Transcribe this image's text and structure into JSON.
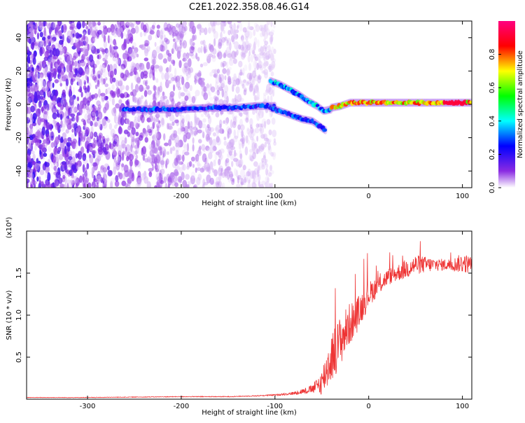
{
  "figure": {
    "title": "C2E1.2022.358.08.46.G14"
  },
  "chart_data": [
    {
      "type": "heatmap",
      "title": "C2E1.2022.358.08.46.G14",
      "xlabel": "Height of straight line (km)",
      "ylabel": "Frequency (Hz)",
      "xlim": [
        -365,
        110
      ],
      "ylim": [
        -50,
        50
      ],
      "x_ticks": [
        -300,
        -200,
        -100,
        0,
        100
      ],
      "y_ticks": [
        -40,
        -20,
        0,
        20,
        40
      ],
      "colorbar": {
        "label": "Normalized spectral amplitude",
        "range": [
          0.0,
          1.0
        ],
        "ticks": [
          "0.0",
          "0.2",
          "0.4",
          "0.6",
          "0.8"
        ],
        "colormap": [
          "#ffffff",
          "#8a2be2",
          "#0000ff",
          "#00ffff",
          "#00ff00",
          "#ffff00",
          "#ff0000",
          "#ff0080"
        ]
      },
      "ridges": [
        {
          "x": [
            -262,
            -230,
            -200,
            -170,
            -140,
            -120,
            -105,
            -100
          ],
          "y": [
            -3,
            -3,
            -3,
            -2,
            -2,
            -1,
            -1,
            -1
          ],
          "amplitude": 0.35
        },
        {
          "x": [
            -105,
            -90,
            -80,
            -70,
            -60,
            -50,
            -45
          ],
          "y": [
            -2,
            -5,
            -7,
            -9,
            -10,
            -14,
            -16
          ],
          "amplitude": 0.35
        },
        {
          "x": [
            -105,
            -95,
            -85,
            -75,
            -65,
            -55,
            -48,
            -40
          ],
          "y": [
            14,
            12,
            9,
            6,
            2,
            -1,
            -4,
            -3
          ],
          "amplitude": 0.45
        },
        {
          "x": [
            -40,
            -30,
            -20,
            -10,
            0,
            20,
            40,
            60,
            80,
            100,
            110
          ],
          "y": [
            -2,
            -1,
            1,
            1,
            1,
            1,
            1,
            1,
            1,
            1,
            1
          ],
          "amplitude": 0.85
        }
      ],
      "noise_region": {
        "x": [
          -365,
          -100
        ],
        "y": [
          -50,
          50
        ]
      },
      "grid": false
    },
    {
      "type": "line",
      "xlabel": "Height of straight line (km)",
      "ylabel": "SNR (10 * v/v)",
      "y_exponent": "(x10⁴)",
      "xlim": [
        -365,
        110
      ],
      "ylim": [
        0,
        2.0
      ],
      "x_ticks": [
        -300,
        -200,
        -100,
        0,
        100
      ],
      "y_ticks": [
        "0.5",
        "1.0",
        "1.5"
      ],
      "color": "#ee3333",
      "series": [
        {
          "x": [
            -365,
            -300,
            -200,
            -150,
            -120,
            -100,
            -80,
            -60,
            -50,
            -45,
            -40,
            -35,
            -30,
            -25,
            -20,
            -15,
            -10,
            -5,
            0,
            10,
            20,
            30,
            40,
            50,
            60,
            70,
            80,
            90,
            100,
            110
          ],
          "y": [
            0.02,
            0.02,
            0.03,
            0.03,
            0.04,
            0.05,
            0.07,
            0.12,
            0.2,
            0.35,
            0.5,
            0.6,
            0.7,
            0.8,
            0.9,
            0.95,
            1.05,
            1.15,
            1.25,
            1.35,
            1.45,
            1.5,
            1.55,
            1.6,
            1.6,
            1.6,
            1.6,
            1.6,
            1.62,
            1.6
          ],
          "noise": [
            0.003,
            0.003,
            0.004,
            0.005,
            0.006,
            0.008,
            0.02,
            0.05,
            0.15,
            0.25,
            0.3,
            0.3,
            0.3,
            0.28,
            0.25,
            0.22,
            0.2,
            0.18,
            0.15,
            0.12,
            0.1,
            0.1,
            0.12,
            0.12,
            0.1,
            0.08,
            0.07,
            0.08,
            0.12,
            0.1
          ]
        }
      ],
      "grid": false
    }
  ]
}
